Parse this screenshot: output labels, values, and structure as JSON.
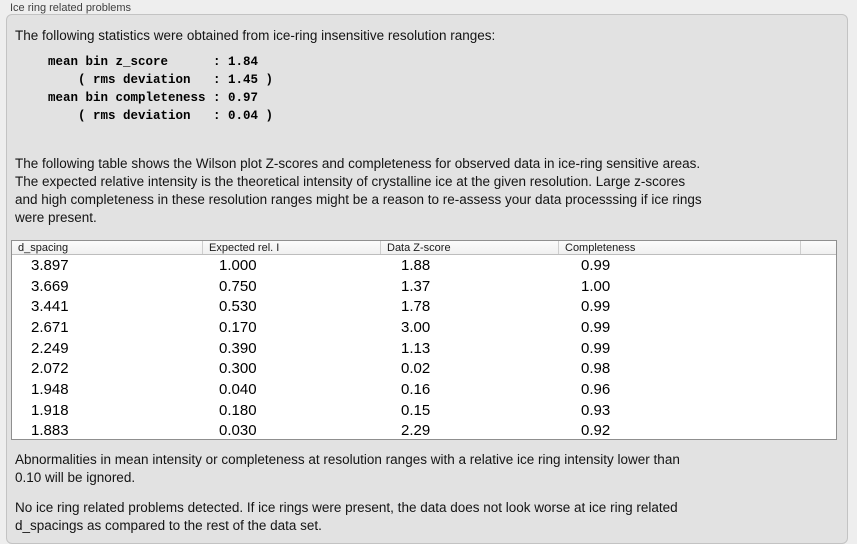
{
  "panel": {
    "title": "Ice ring related problems"
  },
  "intro": "The following statistics were obtained from ice-ring insensitive resolution ranges:",
  "stats_block": "mean bin z_score      : 1.84\n    ( rms deviation   : 1.45 )\nmean bin completeness : 0.97\n    ( rms deviation   : 0.04 )",
  "description": "The following table shows the Wilson plot Z-scores and completeness for observed data in ice-ring sensitive areas.\nThe expected relative intensity is the theoretical intensity of crystalline ice at the given resolution. Large z-scores\nand high completeness in these resolution ranges might be a reason to re-assess your data processsing if ice rings\nwere present.",
  "table": {
    "headers": [
      "d_spacing",
      "Expected rel. I",
      "Data Z-score",
      "Completeness"
    ],
    "rows": [
      [
        "3.897",
        "1.000",
        "1.88",
        "0.99"
      ],
      [
        "3.669",
        "0.750",
        "1.37",
        "1.00"
      ],
      [
        "3.441",
        "0.530",
        "1.78",
        "0.99"
      ],
      [
        "2.671",
        "0.170",
        "3.00",
        "0.99"
      ],
      [
        "2.249",
        "0.390",
        "1.13",
        "0.99"
      ],
      [
        "2.072",
        "0.300",
        "0.02",
        "0.98"
      ],
      [
        "1.948",
        "0.040",
        "0.16",
        "0.96"
      ],
      [
        "1.918",
        "0.180",
        "0.15",
        "0.93"
      ],
      [
        "1.883",
        "0.030",
        "2.29",
        "0.92"
      ]
    ]
  },
  "note_ignore": "Abnormalities in mean intensity or completeness at resolution ranges with a relative ice ring intensity lower than\n0.10 will be ignored.",
  "conclusion": "No ice ring related problems detected. If ice rings were present, the data does not look worse at ice ring related\nd_spacings as compared to the rest of the data set."
}
